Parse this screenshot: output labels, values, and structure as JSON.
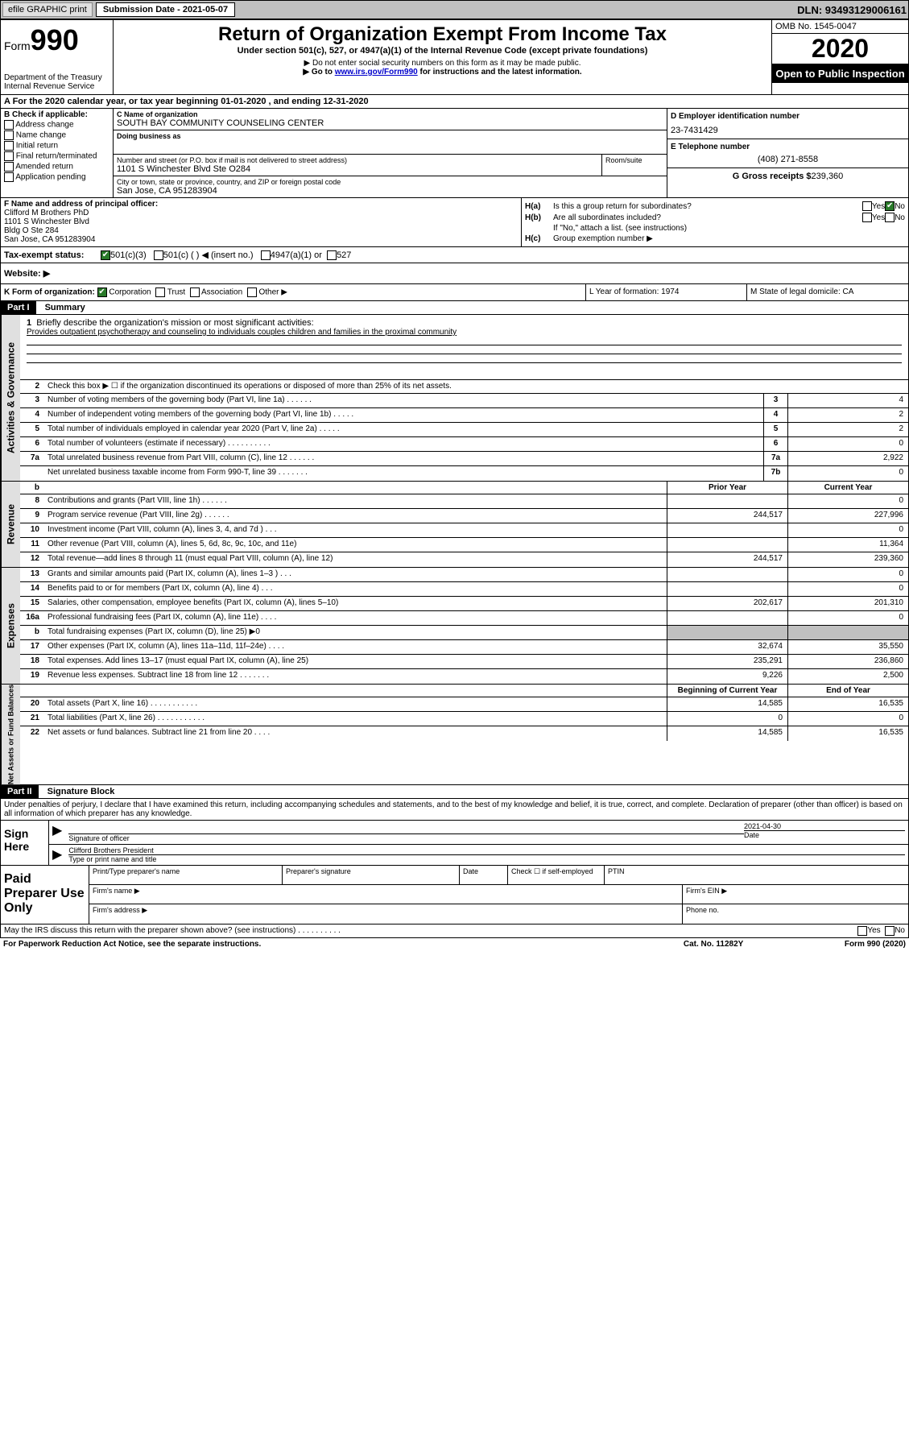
{
  "topbar": {
    "efile": "efile GRAPHIC print",
    "sub_label": "Submission Date - 2021-05-07",
    "dln": "DLN: 93493129006161"
  },
  "header": {
    "form_prefix": "Form",
    "form_num": "990",
    "dept": "Department of the Treasury",
    "irs": "Internal Revenue Service",
    "title": "Return of Organization Exempt From Income Tax",
    "subtitle": "Under section 501(c), 527, or 4947(a)(1) of the Internal Revenue Code (except private foundations)",
    "note1": "▶ Do not enter social security numbers on this form as it may be made public.",
    "note2_pre": "▶ Go to ",
    "note2_link": "www.irs.gov/Form990",
    "note2_post": " for instructions and the latest information.",
    "omb": "OMB No. 1545-0047",
    "year": "2020",
    "open_pub": "Open to Public Inspection"
  },
  "row_a": "A For the 2020 calendar year, or tax year beginning 01-01-2020    , and ending 12-31-2020",
  "col_b": {
    "hdr": "B Check if applicable:",
    "items": [
      "Address change",
      "Name change",
      "Initial return",
      "Final return/terminated",
      "Amended return",
      "Application pending"
    ]
  },
  "org": {
    "c_lbl": "C Name of organization",
    "name": "SOUTH BAY COMMUNITY COUNSELING CENTER",
    "dba_lbl": "Doing business as",
    "addr_lbl": "Number and street (or P.O. box if mail is not delivered to street address)",
    "addr": "1101 S Winchester Blvd Ste O284",
    "room_lbl": "Room/suite",
    "city_lbl": "City or town, state or province, country, and ZIP or foreign postal code",
    "city": "San Jose, CA  951283904"
  },
  "right": {
    "d_lbl": "D Employer identification number",
    "ein": "23-7431429",
    "e_lbl": "E Telephone number",
    "phone": "(408) 271-8558",
    "g_lbl": "G Gross receipts $",
    "g_val": "239,360"
  },
  "f": {
    "lbl": "F Name and address of principal officer:",
    "name": "Clifford M Brothers PhD",
    "addr1": "1101 S Winchester Blvd",
    "addr2": "Bldg O Ste 284",
    "addr3": "San Jose, CA  951283904"
  },
  "h": {
    "a": "Is this a group return for subordinates?",
    "b": "Are all subordinates included?",
    "b_note": "If \"No,\" attach a list. (see instructions)",
    "c": "Group exemption number ▶",
    "yes": "Yes",
    "no": "No"
  },
  "i": {
    "lbl": "Tax-exempt status:",
    "opts": [
      "501(c)(3)",
      "501(c) (   ) ◀ (insert no.)",
      "4947(a)(1) or",
      "527"
    ]
  },
  "j": "Website: ▶",
  "k": {
    "lbl": "K Form of organization:",
    "opts": [
      "Corporation",
      "Trust",
      "Association",
      "Other ▶"
    ]
  },
  "l": "L Year of formation: 1974",
  "m": "M State of legal domicile: CA",
  "part1": {
    "hdr": "Part I",
    "title": "Summary",
    "q1": "Briefly describe the organization's mission or most significant activities:",
    "mission": "Provides outpatient psychotherapy and counseling to individuals couples children and families in the proximal community",
    "q2": "Check this box ▶ ☐  if the organization discontinued its operations or disposed of more than 25% of its net assets."
  },
  "gov_lines": [
    {
      "n": "3",
      "t": "Number of voting members of the governing body (Part VI, line 1a)   .    .    .    .    .    .",
      "b": "3",
      "v": "4"
    },
    {
      "n": "4",
      "t": "Number of independent voting members of the governing body (Part VI, line 1b)   .    .    .    .    .",
      "b": "4",
      "v": "2"
    },
    {
      "n": "5",
      "t": "Total number of individuals employed in calendar year 2020 (Part V, line 2a)   .    .    .    .    .",
      "b": "5",
      "v": "2"
    },
    {
      "n": "6",
      "t": "Total number of volunteers (estimate if necessary)   .    .    .    .    .    .    .    .    .    .",
      "b": "6",
      "v": "0"
    },
    {
      "n": "7a",
      "t": "Total unrelated business revenue from Part VIII, column (C), line 12   .    .    .    .    .    .",
      "b": "7a",
      "v": "2,922"
    },
    {
      "n": "",
      "t": "Net unrelated business taxable income from Form 990-T, line 39   .    .    .    .    .    .    .",
      "b": "7b",
      "v": "0"
    }
  ],
  "col_hdrs": {
    "prior": "Prior Year",
    "current": "Current Year"
  },
  "rev_lines": [
    {
      "n": "8",
      "t": "Contributions and grants (Part VIII, line 1h)   .    .    .    .    .    .",
      "p": "",
      "c": "0"
    },
    {
      "n": "9",
      "t": "Program service revenue (Part VIII, line 2g)   .    .    .    .    .    .",
      "p": "244,517",
      "c": "227,996"
    },
    {
      "n": "10",
      "t": "Investment income (Part VIII, column (A), lines 3, 4, and 7d )   .    .    .",
      "p": "",
      "c": "0"
    },
    {
      "n": "11",
      "t": "Other revenue (Part VIII, column (A), lines 5, 6d, 8c, 9c, 10c, and 11e)",
      "p": "",
      "c": "11,364"
    },
    {
      "n": "12",
      "t": "Total revenue—add lines 8 through 11 (must equal Part VIII, column (A), line 12)",
      "p": "244,517",
      "c": "239,360"
    }
  ],
  "exp_lines": [
    {
      "n": "13",
      "t": "Grants and similar amounts paid (Part IX, column (A), lines 1–3 )   .    .    .",
      "p": "",
      "c": "0"
    },
    {
      "n": "14",
      "t": "Benefits paid to or for members (Part IX, column (A), line 4)   .    .    .",
      "p": "",
      "c": "0"
    },
    {
      "n": "15",
      "t": "Salaries, other compensation, employee benefits (Part IX, column (A), lines 5–10)",
      "p": "202,617",
      "c": "201,310"
    },
    {
      "n": "16a",
      "t": "Professional fundraising fees (Part IX, column (A), line 11e)   .    .    .    .",
      "p": "",
      "c": "0"
    },
    {
      "n": "b",
      "t": "Total fundraising expenses (Part IX, column (D), line 25) ▶0",
      "p": "shaded",
      "c": "shaded"
    },
    {
      "n": "17",
      "t": "Other expenses (Part IX, column (A), lines 11a–11d, 11f–24e)   .    .    .    .",
      "p": "32,674",
      "c": "35,550"
    },
    {
      "n": "18",
      "t": "Total expenses. Add lines 13–17 (must equal Part IX, column (A), line 25)",
      "p": "235,291",
      "c": "236,860"
    },
    {
      "n": "19",
      "t": "Revenue less expenses. Subtract line 18 from line 12   .    .    .    .    .    .    .",
      "p": "9,226",
      "c": "2,500"
    }
  ],
  "na_hdrs": {
    "begin": "Beginning of Current Year",
    "end": "End of Year"
  },
  "na_lines": [
    {
      "n": "20",
      "t": "Total assets (Part X, line 16)   .    .    .    .    .    .    .    .    .    .    .",
      "p": "14,585",
      "c": "16,535"
    },
    {
      "n": "21",
      "t": "Total liabilities (Part X, line 26)   .    .    .    .    .    .    .    .    .    .    .",
      "p": "0",
      "c": "0"
    },
    {
      "n": "22",
      "t": "Net assets or fund balances. Subtract line 21 from line 20   .    .    .    .",
      "p": "14,585",
      "c": "16,535"
    }
  ],
  "part2": {
    "hdr": "Part II",
    "title": "Signature Block",
    "decl": "Under penalties of perjury, I declare that I have examined this return, including accompanying schedules and statements, and to the best of my knowledge and belief, it is true, correct, and complete. Declaration of preparer (other than officer) is based on all information of which preparer has any knowledge."
  },
  "sign": {
    "here": "Sign Here",
    "sig_lbl": "Signature of officer",
    "date_lbl": "Date",
    "date": "2021-04-30",
    "name": "Clifford Brothers  President",
    "name_lbl": "Type or print name and title"
  },
  "prep": {
    "hdr": "Paid Preparer Use Only",
    "c1": "Print/Type preparer's name",
    "c2": "Preparer's signature",
    "c3": "Date",
    "c4": "Check ☐ if self-employed",
    "c5": "PTIN",
    "firm_name": "Firm's name    ▶",
    "firm_ein": "Firm's EIN ▶",
    "firm_addr": "Firm's address ▶",
    "phone": "Phone no."
  },
  "bottom": {
    "q": "May the IRS discuss this return with the preparer shown above? (see instructions)   .    .    .    .    .    .    .    .    .    .",
    "yes": "Yes",
    "no": "No"
  },
  "footer": {
    "left": "For Paperwork Reduction Act Notice, see the separate instructions.",
    "mid": "Cat. No. 11282Y",
    "right": "Form 990 (2020)"
  },
  "vtabs": {
    "gov": "Activities & Governance",
    "rev": "Revenue",
    "exp": "Expenses",
    "na": "Net Assets or Fund Balances"
  }
}
